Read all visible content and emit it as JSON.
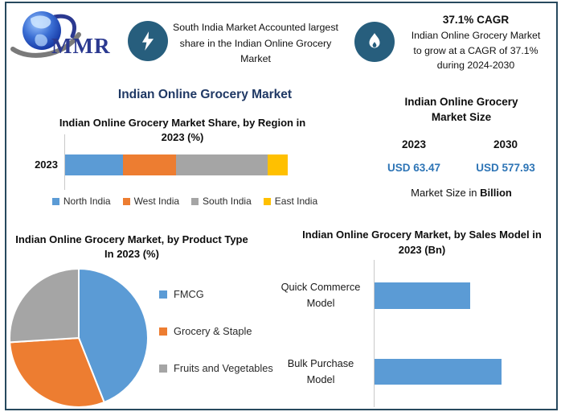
{
  "brand": {
    "logo_text": "MMR"
  },
  "icons": {
    "highlight": "lightning-bolt-icon",
    "cagr": "flame-icon",
    "logo": "globe-icon"
  },
  "colors": {
    "frame_border": "#27495E",
    "icon_circle": "#275E7D",
    "main_title": "#1F3864",
    "usd_value": "#2E75B6",
    "bar_blue": "#5B9BD5",
    "bar_orange": "#ED7D31",
    "bar_gray": "#A5A5A5",
    "bar_yellow": "#FFC000"
  },
  "header": {
    "highlight": {
      "text": "South India Market Accounted largest share in the Indian Online Grocery Market"
    },
    "cagr": {
      "value": "37.1% CAGR",
      "line1": "Indian Online Grocery Market",
      "line2": "to grow at a CAGR of 37.1%",
      "line3": "during 2024-2030"
    }
  },
  "main_title": "Indian Online Grocery Market",
  "market_size": {
    "title_line1": "Indian Online Grocery",
    "title_line2": "Market Size",
    "years": [
      "2023",
      "2030"
    ],
    "values": [
      "USD 63.47",
      "USD 577.93"
    ],
    "footnote_prefix": "Market Size in ",
    "footnote_bold": "Billion"
  },
  "chart_data": [
    {
      "id": "region_share",
      "type": "bar",
      "variant": "stacked-horizontal",
      "title": "Indian Online Grocery Market Share, by Region in 2023 (%)",
      "categories": [
        "2023"
      ],
      "series": [
        {
          "name": "North India",
          "color": "#5B9BD5",
          "values": [
            26
          ]
        },
        {
          "name": "West India",
          "color": "#ED7D31",
          "values": [
            24
          ]
        },
        {
          "name": "South India",
          "color": "#A5A5A5",
          "values": [
            41
          ]
        },
        {
          "name": "East India",
          "color": "#FFC000",
          "values": [
            9
          ]
        }
      ],
      "unit": "%",
      "values_estimated": true,
      "legend_position": "bottom"
    },
    {
      "id": "product_type",
      "type": "pie",
      "title": "Indian Online Grocery Market, by Product Type In 2023 (%)",
      "labels": [
        "FMCG",
        "Grocery & Staple",
        "Fruits and Vegetables"
      ],
      "values": [
        44,
        30,
        26
      ],
      "colors": [
        "#5B9BD5",
        "#ED7D31",
        "#A5A5A5"
      ],
      "unit": "%",
      "start_angle_deg": 0,
      "direction": "clockwise",
      "values_estimated": true,
      "legend_position": "right"
    },
    {
      "id": "sales_model",
      "type": "bar",
      "variant": "horizontal",
      "title": "Indian Online Grocery Market, by Sales Model in 2023 (Bn)",
      "categories": [
        "Quick Commerce Model",
        "Bulk Purchase Model"
      ],
      "values": [
        0.75,
        1.0
      ],
      "value_scale": "relative",
      "axis_labeled": false,
      "color": "#5B9BD5"
    }
  ]
}
